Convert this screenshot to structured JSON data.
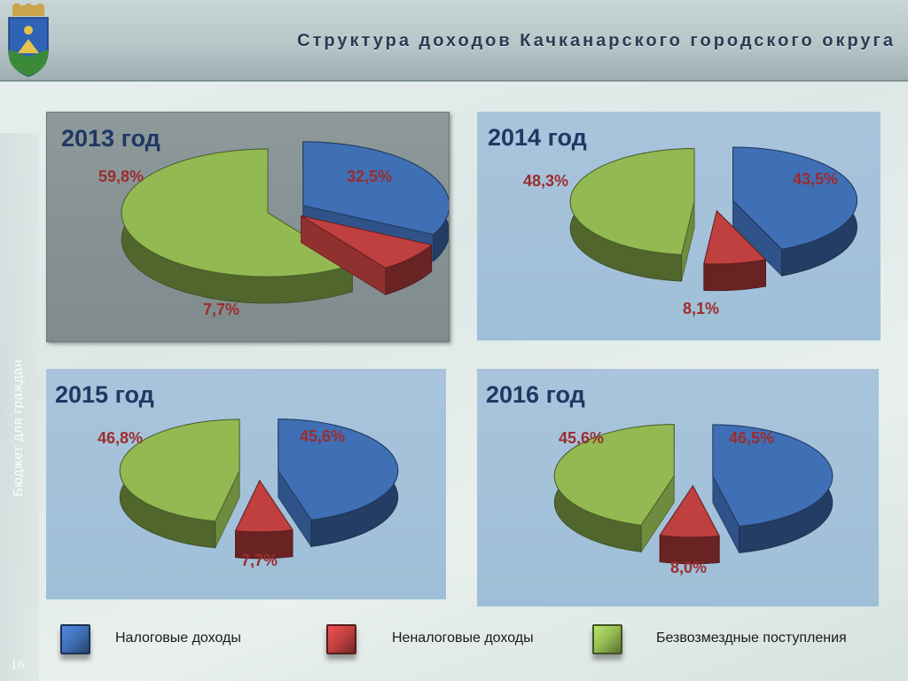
{
  "header": {
    "title": "Структура доходов Качканарского городского округа"
  },
  "sidebar": {
    "caption": "Бюджет для граждан",
    "page_number": "16"
  },
  "legend": [
    {
      "label": "Налоговые доходы",
      "color": "#3f6fb5"
    },
    {
      "label": "Неналоговые доходы",
      "color": "#c0403f"
    },
    {
      "label": "Безвозмездные поступления",
      "color": "#93b952"
    }
  ],
  "chart_data": [
    {
      "type": "pie",
      "title": "2013 год",
      "categories": [
        "Налоговые доходы",
        "Неналоговые доходы",
        "Безвозмездные поступления"
      ],
      "values": [
        32.5,
        7.7,
        59.8
      ],
      "labels": [
        "32,5%",
        "7,7%",
        "59,8%"
      ]
    },
    {
      "type": "pie",
      "title": "2014 год",
      "categories": [
        "Налоговые доходы",
        "Неналоговые доходы",
        "Безвозмездные поступления"
      ],
      "values": [
        43.5,
        8.1,
        48.3
      ],
      "labels": [
        "43,5%",
        "8,1%",
        "48,3%"
      ]
    },
    {
      "type": "pie",
      "title": "2015 год",
      "categories": [
        "Налоговые доходы",
        "Неналоговые доходы",
        "Безвозмездные поступления"
      ],
      "values": [
        45.6,
        7.7,
        46.8
      ],
      "labels": [
        "45,6%",
        "7,7%",
        "46,8%"
      ]
    },
    {
      "type": "pie",
      "title": "2016 год",
      "categories": [
        "Налоговые доходы",
        "Неналоговые доходы",
        "Безвозмездные поступления"
      ],
      "values": [
        46.5,
        8.0,
        45.6
      ],
      "labels": [
        "46,5%",
        "8,0%",
        "45,6%"
      ]
    }
  ]
}
